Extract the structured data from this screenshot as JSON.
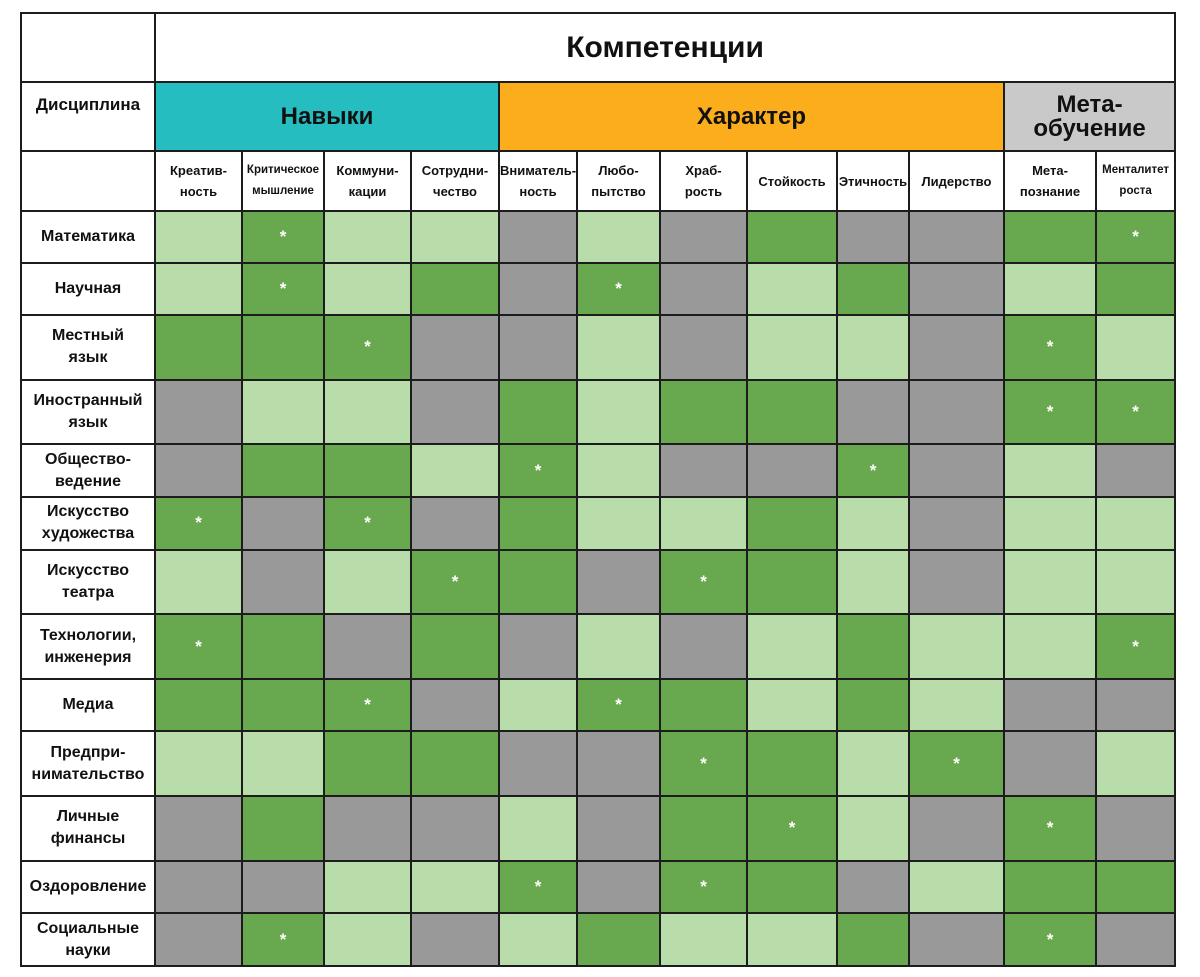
{
  "chart_data": {
    "type": "heatmap",
    "title": "Компетенции",
    "row_header": "Дисциплина",
    "groups": [
      {
        "name": "Навыки",
        "color": "#26bdc1",
        "span": 4
      },
      {
        "name": "Характер",
        "color": "#fbad1b",
        "span": 6
      },
      {
        "name": "Мета-\nобучение",
        "color": "#c9c9c9",
        "span": 2
      }
    ],
    "columns": [
      "Креатив-\nность",
      "Критическое\nмышление",
      "Коммуни-\nкации",
      "Сотрудни-\nчество",
      "Вниматель-\nность",
      "Любо-\nпытство",
      "Храб-\nрость",
      "Стойкость",
      "Этичность",
      "Лидерство",
      "Мета-\nпознание",
      "Менталитет\nроста"
    ],
    "rows": [
      "Математика",
      "Научная",
      "Местный\nязык",
      "Иностранный\nязык",
      "Общество-\nведение",
      "Искусство\nхудожества",
      "Искусство\nтеатра",
      "Технологии,\nинженерия",
      "Медиа",
      "Предпри-\nнимательство",
      "Личные\nфинансы",
      "Оздоровление",
      "Социальные\nнауки"
    ],
    "levels": [
      {
        "value": 0,
        "color": "#999999"
      },
      {
        "value": 1,
        "color": "#b9dcab"
      },
      {
        "value": 2,
        "color": "#68a94f"
      }
    ],
    "values": [
      [
        1,
        2,
        1,
        1,
        0,
        1,
        0,
        2,
        0,
        0,
        2,
        2
      ],
      [
        1,
        2,
        1,
        2,
        0,
        2,
        0,
        1,
        2,
        0,
        1,
        2
      ],
      [
        2,
        2,
        2,
        0,
        0,
        1,
        0,
        1,
        1,
        0,
        2,
        1
      ],
      [
        0,
        1,
        1,
        0,
        2,
        1,
        2,
        2,
        0,
        0,
        2,
        2
      ],
      [
        0,
        2,
        2,
        1,
        2,
        1,
        0,
        0,
        2,
        0,
        1,
        0
      ],
      [
        2,
        0,
        2,
        0,
        2,
        1,
        1,
        2,
        1,
        0,
        1,
        1
      ],
      [
        1,
        0,
        1,
        2,
        2,
        0,
        2,
        2,
        1,
        0,
        1,
        1
      ],
      [
        2,
        2,
        0,
        2,
        0,
        1,
        0,
        1,
        2,
        1,
        1,
        2
      ],
      [
        2,
        2,
        2,
        0,
        1,
        2,
        2,
        1,
        2,
        1,
        0,
        0
      ],
      [
        1,
        1,
        2,
        2,
        0,
        0,
        2,
        2,
        1,
        2,
        0,
        1
      ],
      [
        0,
        2,
        0,
        0,
        1,
        0,
        2,
        2,
        1,
        0,
        2,
        0
      ],
      [
        0,
        0,
        1,
        1,
        2,
        0,
        2,
        2,
        0,
        1,
        2,
        2
      ],
      [
        0,
        2,
        1,
        0,
        1,
        2,
        1,
        1,
        2,
        0,
        2,
        0
      ]
    ],
    "marker": "*",
    "marked": [
      [
        0,
        1
      ],
      [
        0,
        11
      ],
      [
        1,
        1
      ],
      [
        1,
        5
      ],
      [
        2,
        2
      ],
      [
        2,
        10
      ],
      [
        3,
        10
      ],
      [
        3,
        11
      ],
      [
        4,
        4
      ],
      [
        4,
        8
      ],
      [
        5,
        0
      ],
      [
        5,
        2
      ],
      [
        6,
        3
      ],
      [
        6,
        6
      ],
      [
        7,
        0
      ],
      [
        7,
        11
      ],
      [
        8,
        2
      ],
      [
        8,
        5
      ],
      [
        9,
        6
      ],
      [
        9,
        9
      ],
      [
        10,
        7
      ],
      [
        10,
        10
      ],
      [
        11,
        4
      ],
      [
        11,
        6
      ],
      [
        12,
        1
      ],
      [
        12,
        10
      ]
    ]
  }
}
